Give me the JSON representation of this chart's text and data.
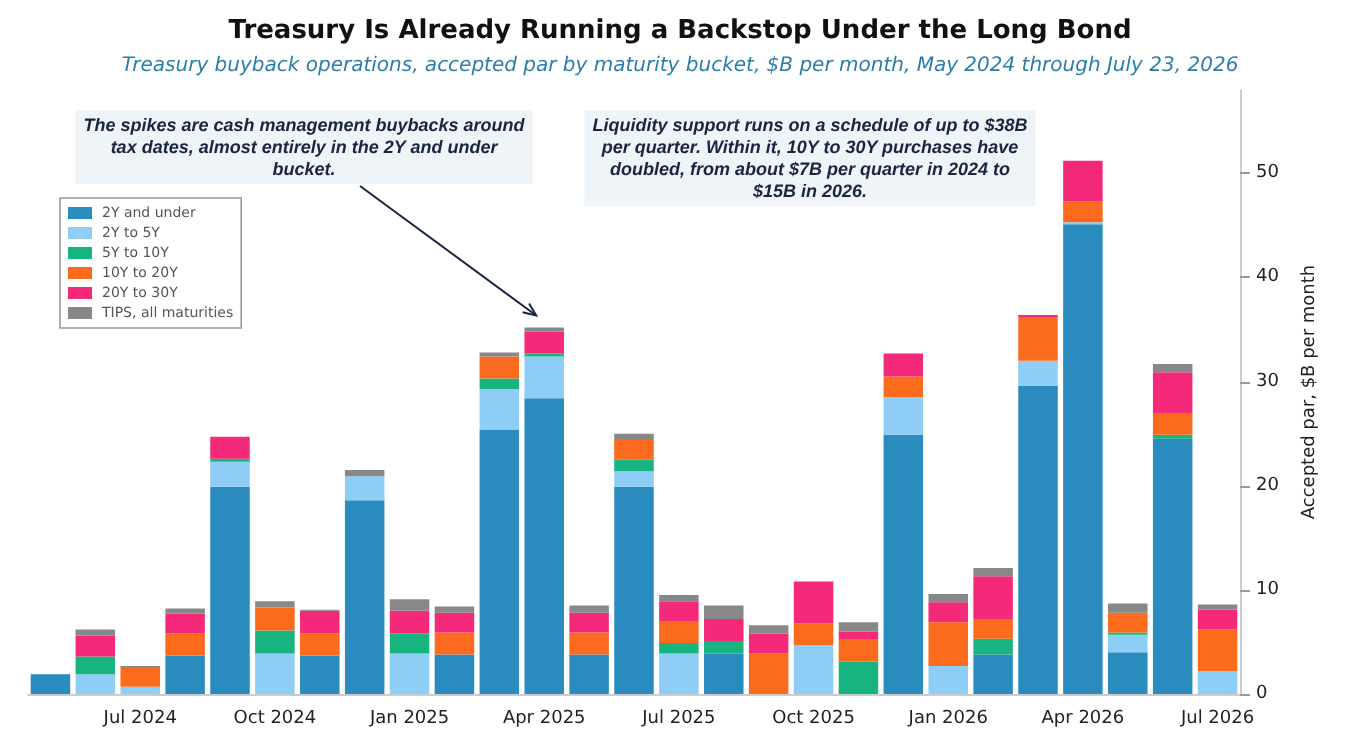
{
  "chart_data": {
    "type": "bar",
    "stacked": true,
    "title": "Treasury Is Already Running a Backstop Under the Long Bond",
    "subtitle": "Treasury buyback operations, accepted par by maturity bucket, $B per month, May 2024 through July 23, 2026",
    "ylabel": "Accepted par, $B per month",
    "categories": [
      null,
      null,
      "Jul 2024",
      null,
      null,
      "Oct 2024",
      null,
      null,
      "Jan 2025",
      null,
      null,
      "Apr 2025",
      null,
      null,
      "Jul 2025",
      null,
      null,
      "Oct 2025",
      null,
      null,
      "Jan 2026",
      null,
      null,
      "Apr 2026",
      null,
      null,
      "Jul 2026"
    ],
    "series": [
      {
        "name": "2Y and under",
        "color": "#2a8bbf",
        "values": [
          1.9,
          0,
          0,
          3.7,
          19.9,
          0,
          3.7,
          18.6,
          0,
          3.8,
          25.4,
          28.4,
          3.8,
          19.9,
          0,
          3.9,
          0,
          0,
          0,
          24.9,
          0,
          3.8,
          29.6,
          45.1,
          4.0,
          24.5,
          0
        ]
      },
      {
        "name": "2Y to 5Y",
        "color": "#8ecdf5",
        "values": [
          0,
          1.9,
          0.7,
          0,
          2.4,
          3.9,
          0,
          2.3,
          3.9,
          0,
          3.9,
          4.0,
          0,
          1.5,
          3.9,
          0,
          0,
          4.7,
          0,
          3.6,
          2.7,
          0,
          2.4,
          0.2,
          1.7,
          0,
          2.2
        ]
      },
      {
        "name": "5Y to 10Y",
        "color": "#18b47f",
        "values": [
          0,
          1.7,
          0,
          0,
          0.3,
          2.2,
          0,
          0,
          1.9,
          0,
          1.0,
          0.3,
          0,
          1.1,
          1.0,
          1.2,
          0,
          0,
          3.1,
          0,
          0,
          1.5,
          0,
          0,
          0.2,
          0.4,
          0
        ]
      },
      {
        "name": "10Y to 20Y",
        "color": "#fb6a1d",
        "values": [
          0,
          0,
          1.9,
          2.1,
          0,
          2.2,
          2.1,
          0,
          0,
          2.1,
          2.1,
          0,
          2.1,
          1.9,
          2.1,
          0,
          3.9,
          2.1,
          2.1,
          2.0,
          4.2,
          1.9,
          4.2,
          2.0,
          1.9,
          2.0,
          4.0
        ]
      },
      {
        "name": "20Y to 30Y",
        "color": "#f5297a",
        "values": [
          0,
          2.0,
          0,
          1.9,
          2.1,
          0,
          2.2,
          0,
          2.2,
          1.9,
          0,
          2.1,
          1.9,
          0,
          1.9,
          2.1,
          1.9,
          4.0,
          0.8,
          2.2,
          1.9,
          4.1,
          0.2,
          3.9,
          0,
          4.0,
          1.9
        ]
      },
      {
        "name": "TIPS, all maturities",
        "color": "#888888",
        "values": [
          0,
          0.6,
          0.1,
          0.5,
          0,
          0.6,
          0.1,
          0.6,
          1.1,
          0.6,
          0.4,
          0.4,
          0.7,
          0.6,
          0.6,
          1.3,
          0.8,
          0,
          0.9,
          0,
          0.8,
          0.8,
          0,
          0,
          0.9,
          0.8,
          0.5
        ]
      }
    ],
    "ylim": [
      0,
      58
    ],
    "yticks": [
      0,
      10,
      20,
      30,
      40,
      50
    ],
    "legend": "top left",
    "annotations": [
      {
        "text": "The spikes are cash management buybacks around tax dates, almost entirely in the 2Y and under bucket.",
        "x": "Apr 2025",
        "y": 35.2
      },
      "Liquidity support runs on a schedule of up to $38B per quarter. Within it, 10Y to 30Y purchases have doubled, from about $7B per quarter in 2024 to $15B in 2026."
    ]
  }
}
